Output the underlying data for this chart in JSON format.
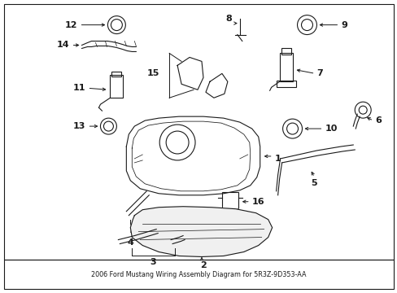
{
  "title": "2006 Ford Mustang Wiring Assembly Diagram for 5R3Z-9D353-AA",
  "bg_color": "#ffffff",
  "line_color": "#1a1a1a",
  "fig_width": 4.89,
  "fig_height": 3.6,
  "dpi": 100
}
